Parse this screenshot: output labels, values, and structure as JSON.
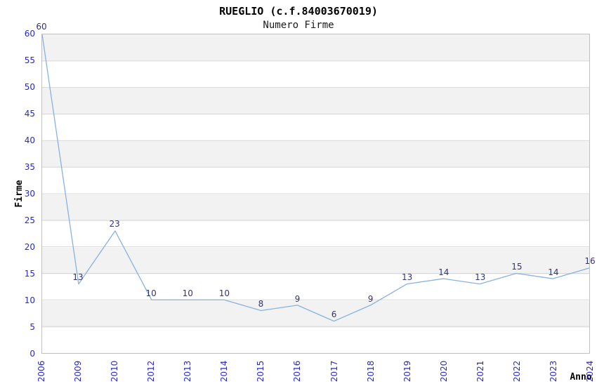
{
  "chart_data": {
    "type": "line",
    "title": "RUEGLIO (c.f.84003670019)",
    "subtitle": "Numero Firme",
    "xlabel": "Anno",
    "ylabel": "Firme",
    "categories": [
      "2006",
      "2009",
      "2010",
      "2012",
      "2013",
      "2014",
      "2015",
      "2016",
      "2017",
      "2018",
      "2019",
      "2020",
      "2021",
      "2022",
      "2023",
      "2024"
    ],
    "values": [
      60,
      13,
      23,
      10,
      10,
      10,
      8,
      9,
      6,
      9,
      13,
      14,
      13,
      15,
      14,
      16
    ],
    "ylim": [
      0,
      60
    ],
    "yticks": [
      0,
      5,
      10,
      15,
      20,
      25,
      30,
      35,
      40,
      45,
      50,
      55,
      60
    ],
    "grid": "horizontal",
    "background_bands": "alternating-gray-white",
    "legend_position": "none",
    "data_labels_visible": true,
    "markers": "none",
    "colors": {
      "line": "#88b2e0",
      "tick_label": "#2828cc",
      "data_label": "#333377",
      "band": "#f2f2f2",
      "gridline": "#d8d8d8",
      "frame": "#c0c0c0",
      "title": "#000000",
      "axis_label": "#000000"
    }
  }
}
